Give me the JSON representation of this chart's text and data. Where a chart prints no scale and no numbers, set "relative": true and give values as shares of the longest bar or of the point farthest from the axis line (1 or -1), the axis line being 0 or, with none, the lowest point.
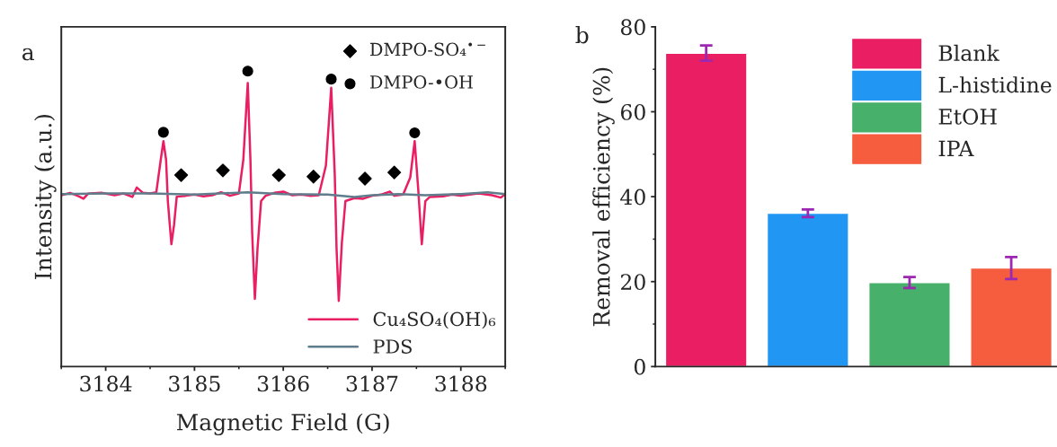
{
  "chart_data": [
    {
      "type": "line",
      "title": "a",
      "xlabel": "Magnetic Field (G)",
      "ylabel": "Intensity (a.u.)",
      "relative": true,
      "xlim": [
        3183.5,
        3188.5
      ],
      "xticks": [
        3184,
        3185,
        3186,
        3187,
        3188
      ],
      "tick_labels": "x",
      "legend": "top right",
      "grid": false,
      "series": [
        {
          "name": "Cu₄SO₄(OH)₆",
          "color": "#e91e63",
          "x": [
            3183.5,
            3183.6,
            3183.7,
            3183.75,
            3183.8,
            3183.95,
            3184.1,
            3184.2,
            3184.3,
            3184.35,
            3184.42,
            3184.5,
            3184.57,
            3184.62,
            3184.65,
            3184.68,
            3184.7,
            3184.74,
            3184.77,
            3184.8,
            3184.9,
            3185.0,
            3185.1,
            3185.2,
            3185.3,
            3185.4,
            3185.5,
            3185.55,
            3185.6,
            3185.63,
            3185.65,
            3185.68,
            3185.71,
            3185.75,
            3185.8,
            3185.9,
            3186.0,
            3186.1,
            3186.2,
            3186.3,
            3186.4,
            3186.48,
            3186.54,
            3186.58,
            3186.6,
            3186.625,
            3186.66,
            3186.7,
            3186.8,
            3186.9,
            3187.0,
            3187.1,
            3187.2,
            3187.25,
            3187.35,
            3187.43,
            3187.48,
            3187.52,
            3187.56,
            3187.6,
            3187.65,
            3187.8,
            3187.9,
            3188.0,
            3188.2,
            3188.35,
            3188.45,
            3188.5
          ],
          "values": [
            0.58,
            0.588,
            0.576,
            0.568,
            0.585,
            0.588,
            0.58,
            0.586,
            0.574,
            0.606,
            0.588,
            0.586,
            0.59,
            0.7,
            0.763,
            0.7,
            0.56,
            0.414,
            0.48,
            0.575,
            0.578,
            0.582,
            0.576,
            0.58,
            0.59,
            0.578,
            0.586,
            0.7,
            0.96,
            0.7,
            0.45,
            0.229,
            0.4,
            0.56,
            0.578,
            0.588,
            0.592,
            0.58,
            0.582,
            0.578,
            0.58,
            0.68,
            0.944,
            0.65,
            0.4,
            0.222,
            0.42,
            0.56,
            0.57,
            0.568,
            0.578,
            0.582,
            0.592,
            0.578,
            0.582,
            0.64,
            0.763,
            0.6,
            0.414,
            0.56,
            0.574,
            0.576,
            0.582,
            0.578,
            0.586,
            0.58,
            0.572,
            0.584
          ]
        },
        {
          "name": "PDS",
          "color": "#5f7d8c",
          "x": [
            3183.5,
            3184.0,
            3184.5,
            3185.0,
            3185.6,
            3186.0,
            3186.5,
            3186.8,
            3187.0,
            3187.3,
            3187.6,
            3188.0,
            3188.3,
            3188.5
          ],
          "values": [
            0.584,
            0.586,
            0.586,
            0.582,
            0.59,
            0.584,
            0.582,
            0.574,
            0.58,
            0.584,
            0.58,
            0.584,
            0.59,
            0.584
          ]
        },
        {
          "type": "scatter",
          "name": "DMPO-SO₄$^{•−}$",
          "color": "#000000",
          "marker": "diamond",
          "x": [
            3184.85,
            3185.32,
            3185.95,
            3186.34,
            3186.92,
            3187.25
          ],
          "values": [
            0.648,
            0.664,
            0.648,
            0.643,
            0.636,
            0.657
          ]
        },
        {
          "type": "scatter",
          "name": "DMPO-•OH",
          "color": "#000000",
          "marker": "circle",
          "x": [
            3184.65,
            3185.6,
            3186.54,
            3187.48
          ],
          "values": [
            0.793,
            1.0,
            0.973,
            0.791
          ]
        }
      ]
    },
    {
      "type": "bar",
      "title": "b",
      "ylabel": "Removal efficiency (%)",
      "categories": [
        null,
        null,
        null,
        null
      ],
      "ylim": [
        0,
        80
      ],
      "yticks": [
        0,
        20,
        40,
        60,
        80
      ],
      "legend": "top right",
      "grid": false,
      "series": [
        {
          "name": "Blank",
          "color": "#e91e63",
          "values": [
            73.8,
            null,
            null,
            null
          ],
          "errors": [
            1.8,
            null,
            null,
            null
          ]
        },
        {
          "name": "L-histidine",
          "color": "#2196f3",
          "values": [
            null,
            36.1,
            null,
            null
          ],
          "errors": [
            null,
            0.9,
            null,
            null
          ]
        },
        {
          "name": "EtOH",
          "color": "#47b06a",
          "values": [
            null,
            null,
            19.8,
            null
          ],
          "errors": [
            null,
            null,
            1.3,
            null
          ]
        },
        {
          "name": "IPA",
          "color": "#f55d3e",
          "values": [
            null,
            null,
            null,
            23.2
          ],
          "errors": [
            null,
            null,
            null,
            2.6
          ]
        }
      ]
    }
  ]
}
